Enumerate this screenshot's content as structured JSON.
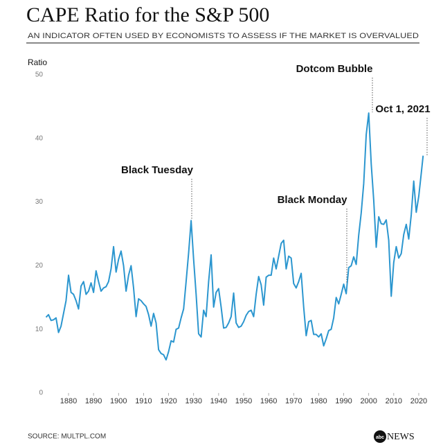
{
  "chart_data": {
    "type": "line",
    "title": "CAPE Ratio for the S&P 500",
    "subtitle": "AN INDICATOR OFTEN USED BY ECONOMISTS TO ASSESS IF THE MARKET IS OVERVALUED",
    "y_label": "Ratio",
    "source": "SOURCE: MULTPL.COM",
    "logo": {
      "badge": "abc",
      "text": "NEWS"
    },
    "annotations": [
      "Black Tuesday",
      "Black Monday",
      "Dotcom Bubble",
      "Oct 1, 2021"
    ],
    "xlim": [
      1871,
      2023
    ],
    "xticks": [
      1880,
      1890,
      1900,
      1910,
      1920,
      1930,
      1940,
      1950,
      1960,
      1970,
      1980,
      1990,
      2000,
      2010,
      2020
    ],
    "ylim": [
      0,
      50
    ],
    "yticks": [
      0,
      10,
      20,
      30,
      40,
      50
    ],
    "grid": false,
    "x": [
      1871,
      1872,
      1873,
      1874,
      1875,
      1876,
      1877,
      1878,
      1879,
      1880,
      1881,
      1882,
      1883,
      1884,
      1885,
      1886,
      1887,
      1888,
      1889,
      1890,
      1891,
      1892,
      1893,
      1894,
      1895,
      1896,
      1897,
      1898,
      1899,
      1900,
      1901,
      1902,
      1903,
      1904,
      1905,
      1906,
      1907,
      1908,
      1909,
      1910,
      1911,
      1912,
      1913,
      1914,
      1915,
      1916,
      1917,
      1918,
      1919,
      1920,
      1921,
      1922,
      1923,
      1924,
      1925,
      1926,
      1927,
      1928,
      1929,
      1930,
      1931,
      1932,
      1933,
      1934,
      1935,
      1936,
      1937,
      1938,
      1939,
      1940,
      1941,
      1942,
      1943,
      1944,
      1945,
      1946,
      1947,
      1948,
      1949,
      1950,
      1951,
      1952,
      1953,
      1954,
      1955,
      1956,
      1957,
      1958,
      1959,
      1960,
      1961,
      1962,
      1963,
      1964,
      1965,
      1966,
      1967,
      1968,
      1969,
      1970,
      1971,
      1972,
      1973,
      1974,
      1975,
      1976,
      1977,
      1978,
      1979,
      1980,
      1981,
      1982,
      1983,
      1984,
      1985,
      1986,
      1987,
      1988,
      1989,
      1990,
      1991,
      1992,
      1993,
      1994,
      1995,
      1996,
      1997,
      1998,
      1999,
      2000,
      2001,
      2002,
      2003,
      2004,
      2005,
      2006,
      2007,
      2008,
      2009,
      2010,
      2011,
      2012,
      2013,
      2014,
      2015,
      2016,
      2017,
      2018,
      2019,
      2020,
      2021,
      2021.75
    ],
    "series": [
      {
        "name": "CAPE Ratio",
        "color": "#2b96cf",
        "values": [
          11.9,
          12.3,
          11.4,
          11.5,
          11.8,
          9.5,
          10.5,
          12.5,
          14.5,
          18.5,
          15.8,
          15.5,
          14.5,
          13.2,
          16.8,
          17.5,
          15.5,
          16.0,
          17.3,
          15.8,
          19.2,
          17.5,
          16.0,
          16.5,
          16.7,
          17.5,
          19.5,
          23.0,
          19.0,
          21.0,
          22.3,
          20.0,
          16.0,
          18.5,
          20.0,
          16.5,
          12.0,
          14.8,
          14.5,
          14.0,
          13.6,
          12.3,
          10.5,
          12.5,
          11.0,
          6.8,
          6.2,
          6.0,
          5.2,
          6.5,
          8.2,
          8.0,
          10.0,
          10.2,
          11.8,
          13.2,
          17.5,
          22.0,
          27.1,
          21.0,
          15.5,
          9.3,
          8.8,
          13.0,
          12.0,
          17.5,
          21.7,
          13.5,
          15.8,
          16.4,
          13.5,
          10.2,
          10.3,
          11.0,
          12.0,
          15.7,
          11.0,
          10.3,
          10.5,
          11.2,
          12.2,
          12.8,
          13.0,
          12.0,
          15.5,
          18.3,
          17.0,
          13.8,
          18.2,
          18.5,
          18.5,
          21.2,
          19.5,
          21.5,
          23.5,
          24.0,
          19.5,
          21.5,
          21.2,
          17.2,
          16.5,
          17.5,
          18.8,
          13.5,
          9.0,
          11.2,
          11.4,
          9.2,
          9.2,
          8.8,
          9.3,
          7.4,
          8.5,
          9.8,
          10.0,
          11.8,
          15.0,
          14.0,
          15.5,
          17.1,
          15.6,
          19.7,
          20.0,
          21.4,
          20.2,
          24.8,
          28.3,
          32.9,
          40.6,
          44.0,
          36.0,
          30.3,
          22.9,
          27.7,
          26.6,
          26.5,
          27.2,
          24.0,
          15.2,
          20.5,
          23.0,
          21.2,
          21.9,
          24.9,
          26.5,
          24.2,
          28.0,
          33.3,
          28.4,
          30.9,
          34.5,
          37.3
        ]
      }
    ]
  }
}
